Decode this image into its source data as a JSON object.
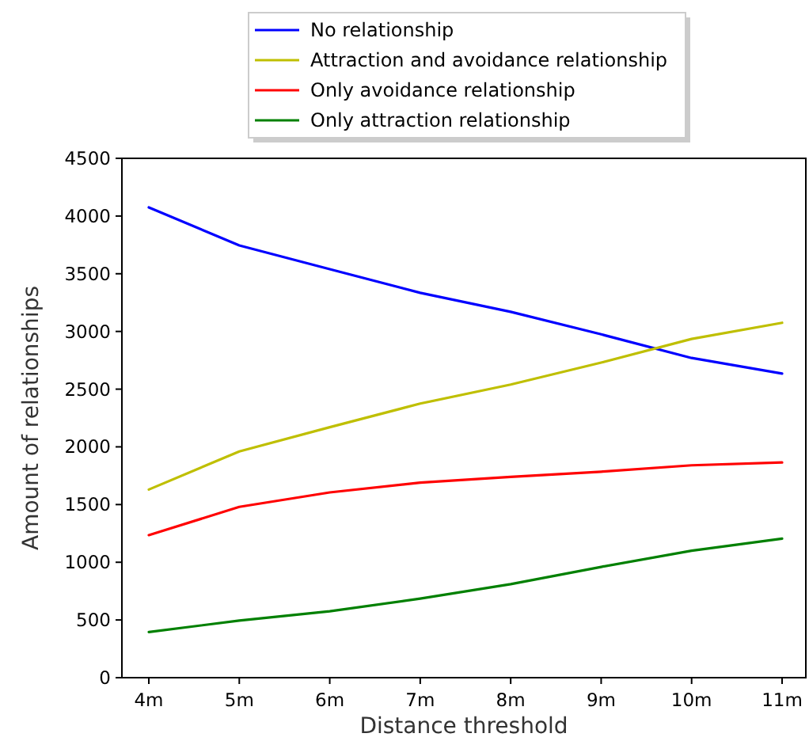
{
  "chart_data": {
    "type": "line",
    "xlabel": "Distance threshold",
    "ylabel": "Amount of relationships",
    "categories": [
      "4m",
      "5m",
      "6m",
      "7m",
      "8m",
      "9m",
      "10m",
      "11m"
    ],
    "series": [
      {
        "name": "No relationship",
        "color": "#0000ff",
        "values": [
          4075,
          3745,
          3540,
          3335,
          3170,
          2975,
          2770,
          2635
        ]
      },
      {
        "name": "Attraction and avoidance relationship",
        "color": "#bfbf00",
        "values": [
          1630,
          1960,
          2170,
          2375,
          2540,
          2730,
          2935,
          3075
        ]
      },
      {
        "name": "Only avoidance relationship",
        "color": "#ff0000",
        "values": [
          1235,
          1480,
          1605,
          1690,
          1740,
          1785,
          1840,
          1865
        ]
      },
      {
        "name": "Only attraction relationship",
        "color": "#008000",
        "values": [
          395,
          495,
          575,
          685,
          810,
          960,
          1100,
          1205
        ]
      }
    ],
    "ylim": [
      0,
      4500
    ],
    "yticks": [
      0,
      500,
      1000,
      1500,
      2000,
      2500,
      3000,
      3500,
      4000,
      4500
    ],
    "legend": "top",
    "grid": false
  }
}
